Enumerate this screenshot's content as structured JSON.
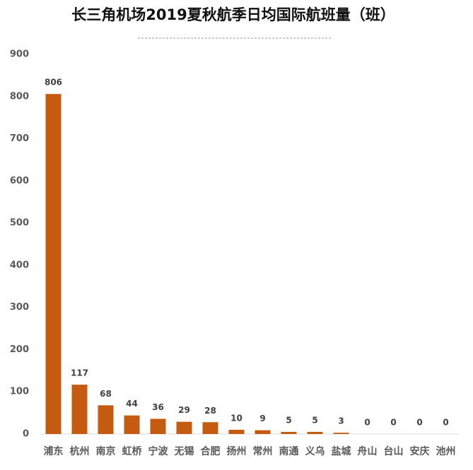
{
  "chart_data": {
    "type": "bar",
    "title": "长三角机场2019夏秋航季日均国际航班量（班）",
    "categories": [
      "浦东",
      "杭州",
      "南京",
      "虹桥",
      "宁波",
      "无锡",
      "合肥",
      "扬州",
      "常州",
      "南通",
      "义乌",
      "盐城",
      "舟山",
      "台山",
      "安庆",
      "池州"
    ],
    "values": [
      806,
      117,
      68,
      44,
      36,
      29,
      28,
      10,
      9,
      5,
      5,
      3,
      0,
      0,
      0,
      0
    ],
    "color": "#c55a11",
    "ylim": [
      0,
      900
    ],
    "yticks": [
      0,
      100,
      200,
      300,
      400,
      500,
      600,
      700,
      800,
      900
    ],
    "grid": false
  }
}
